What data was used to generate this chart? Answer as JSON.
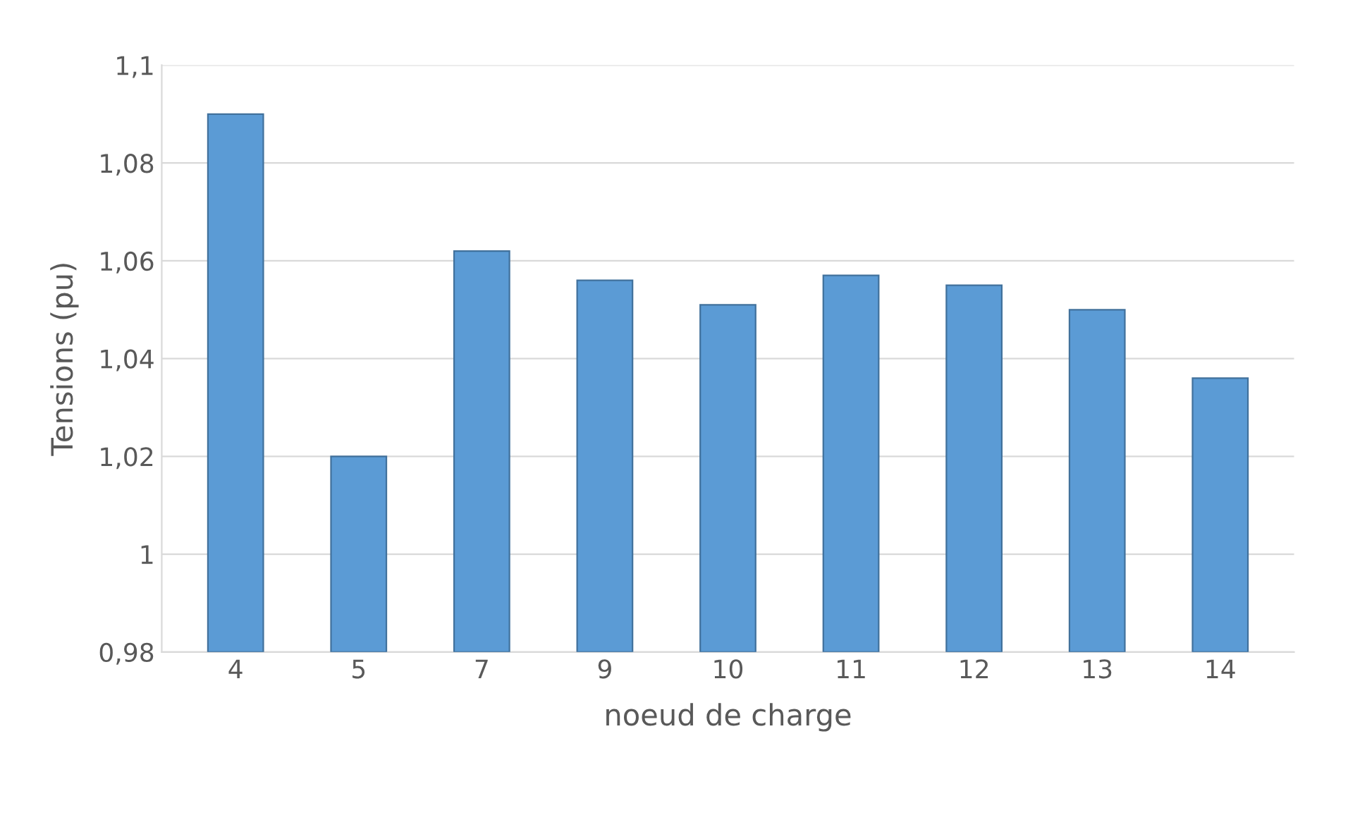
{
  "chart_data": {
    "type": "bar",
    "xlabel": "noeud de charge",
    "ylabel": "Tensions (pu)",
    "categories": [
      "4",
      "5",
      "7",
      "9",
      "10",
      "11",
      "12",
      "13",
      "14"
    ],
    "values": [
      1.09,
      1.02,
      1.062,
      1.056,
      1.051,
      1.057,
      1.055,
      1.05,
      1.036
    ],
    "color": "#5b9bd5",
    "ylim": [
      0.98,
      1.1
    ],
    "yticks": [
      {
        "value": 0.98,
        "label": "0,98"
      },
      {
        "value": 1.0,
        "label": "1"
      },
      {
        "value": 1.02,
        "label": "1,02"
      },
      {
        "value": 1.04,
        "label": "1,04"
      },
      {
        "value": 1.06,
        "label": "1,06"
      },
      {
        "value": 1.08,
        "label": "1,08"
      },
      {
        "value": 1.1,
        "label": "1,1"
      }
    ],
    "grid": "y"
  }
}
